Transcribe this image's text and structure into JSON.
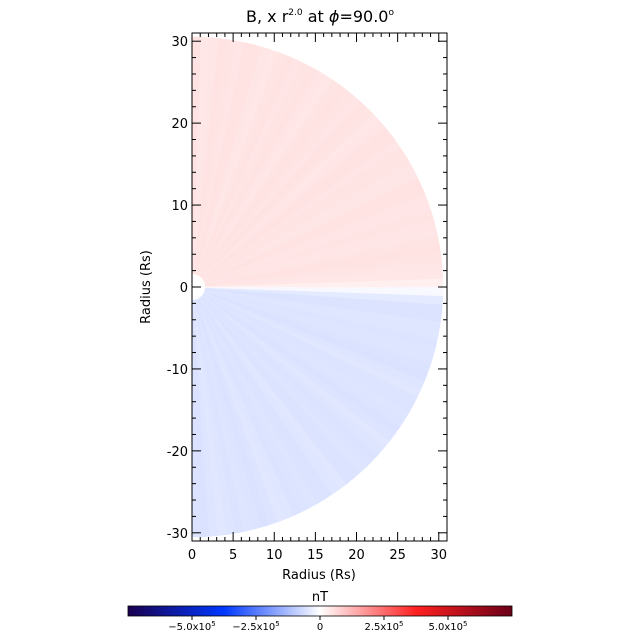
{
  "chart_data": {
    "type": "heatmap",
    "title": {
      "prefix": "B",
      "suffix": ", x r",
      "exponent": "2.0",
      "middle": " at ",
      "phi_symbol": "ϕ",
      "phi_value": "=90.0",
      "degree": "o"
    },
    "xlabel": "Radius (Rs)",
    "ylabel": "Radius (Rs)",
    "xlim": [
      0,
      31
    ],
    "ylim": [
      -31,
      31
    ],
    "x_ticks": [
      0,
      5,
      10,
      15,
      20,
      25,
      30
    ],
    "y_ticks": [
      -30,
      -20,
      -10,
      0,
      10,
      20,
      30
    ],
    "field": {
      "outer_radius": 30.5,
      "inner_radius": 1.0,
      "north_value": 45000.0,
      "south_value": -50000.0,
      "current_sheet_latitude_deg": -0.5
    },
    "colorbar": {
      "label": "nT",
      "min": -750000.0,
      "max": 750000.0,
      "ticks": [
        {
          "value": -500000.0,
          "mantissa": "−5.0x10",
          "exp": "5"
        },
        {
          "value": -250000.0,
          "mantissa": "−2.5x10",
          "exp": "5"
        },
        {
          "value": 0,
          "mantissa": "0",
          "exp": ""
        },
        {
          "value": 250000.0,
          "mantissa": "2.5x10",
          "exp": "5"
        },
        {
          "value": 500000.0,
          "mantissa": "5.0x10",
          "exp": "5"
        }
      ]
    }
  }
}
